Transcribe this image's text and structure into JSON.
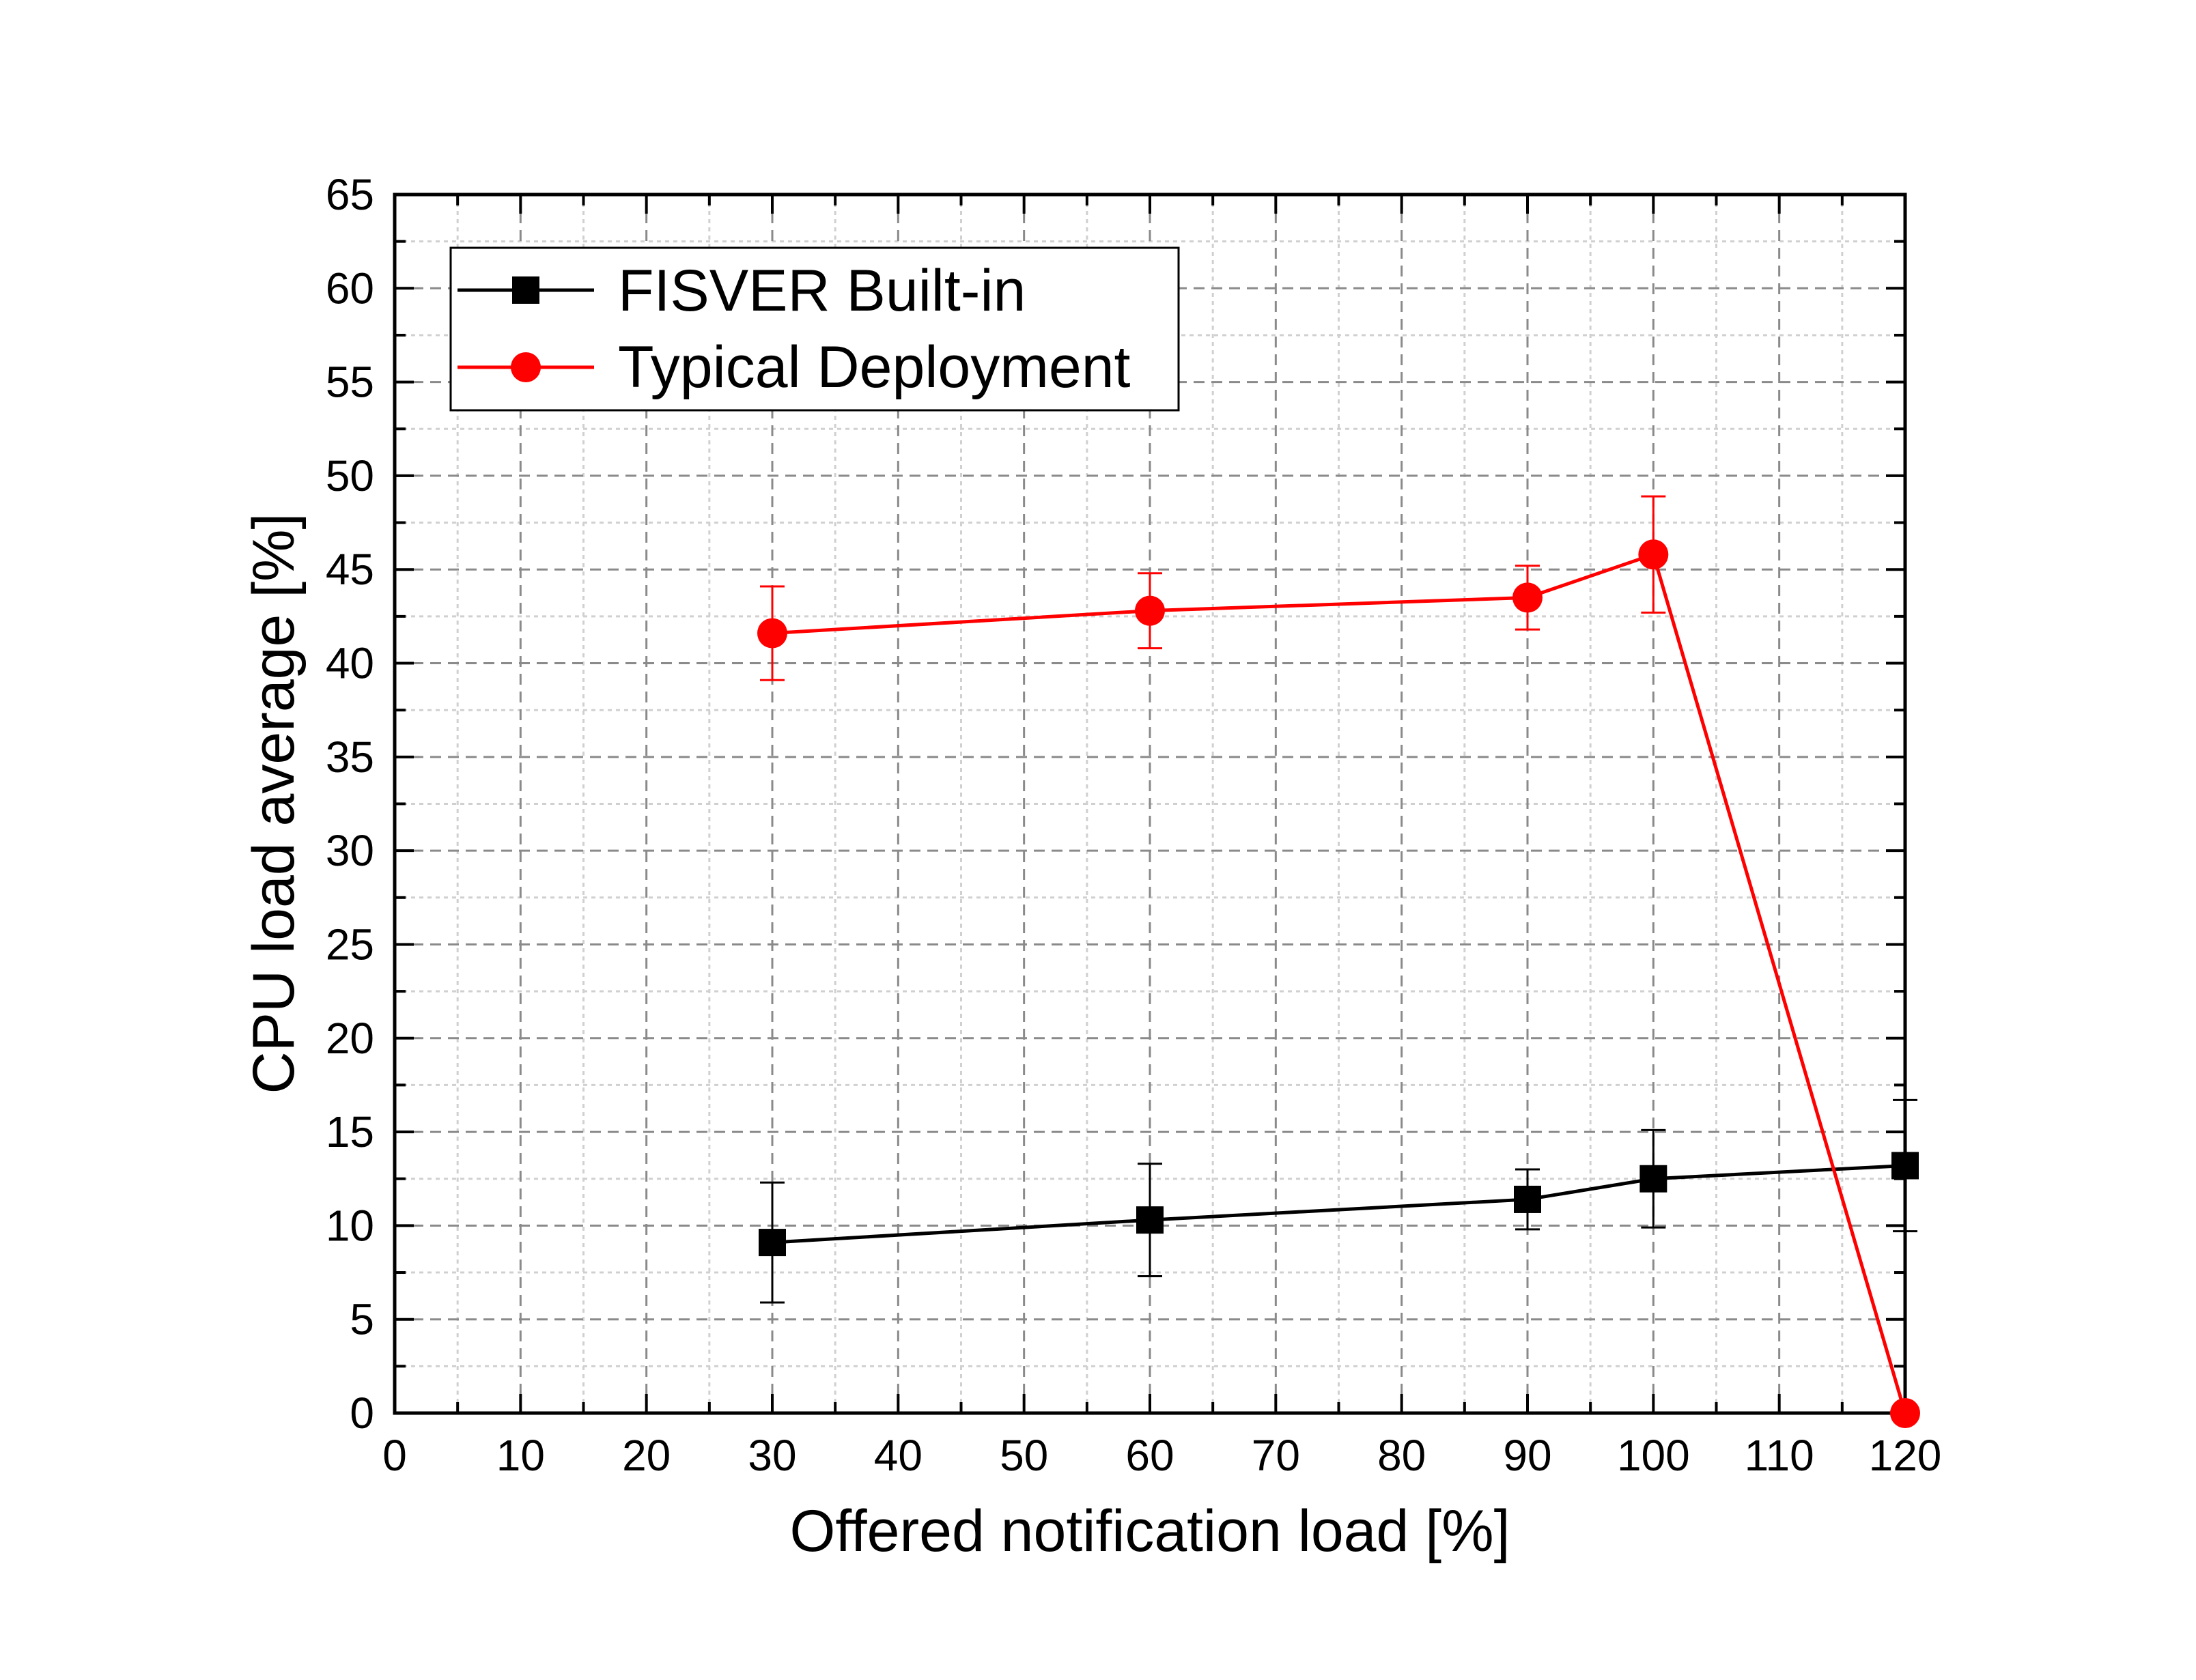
{
  "chart_data": {
    "type": "line",
    "xlabel": "Offered notification load [%]",
    "ylabel": "CPU load average [%]",
    "xlim": [
      0,
      120
    ],
    "ylim": [
      0,
      65
    ],
    "xticks": [
      0,
      10,
      20,
      30,
      40,
      50,
      60,
      70,
      80,
      90,
      100,
      110,
      120
    ],
    "yticks": [
      0,
      5,
      10,
      15,
      20,
      25,
      30,
      35,
      40,
      45,
      50,
      55,
      60,
      65
    ],
    "grid": true,
    "legend_position": "top-left",
    "series": [
      {
        "name": "FISVER Built-in",
        "color": "#000000",
        "marker": "square",
        "x": [
          30,
          60,
          90,
          100,
          120
        ],
        "y": [
          9.1,
          10.3,
          11.4,
          12.5,
          13.2
        ],
        "error": [
          3.2,
          3.0,
          1.6,
          2.6,
          3.5
        ]
      },
      {
        "name": "Typical Deployment",
        "color": "#ff0000",
        "marker": "circle",
        "x": [
          30,
          60,
          90,
          100,
          120
        ],
        "y": [
          41.6,
          42.8,
          43.5,
          45.8,
          0
        ],
        "error": [
          2.5,
          2.0,
          1.7,
          3.1,
          0
        ]
      }
    ]
  }
}
